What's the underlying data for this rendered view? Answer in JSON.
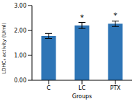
{
  "chart_data": {
    "type": "bar",
    "categories": [
      "C",
      "LC",
      "PTX"
    ],
    "values": [
      1.78,
      2.2,
      2.27
    ],
    "errors": [
      0.1,
      0.12,
      0.11
    ],
    "color": "#2e75b6",
    "x_label": "Groups",
    "y_label": "LDHC₄ activity (U/ml)",
    "ylim": [
      0,
      3
    ],
    "yticks": [
      {
        "value": 0,
        "label": "0.00"
      },
      {
        "value": 1,
        "label": "1.00"
      },
      {
        "value": 2,
        "label": "2.00"
      },
      {
        "value": 3,
        "label": "3.00"
      }
    ],
    "annotations": [
      {
        "category": "LC",
        "text": "*"
      },
      {
        "category": "PTX",
        "text": "*"
      }
    ]
  }
}
